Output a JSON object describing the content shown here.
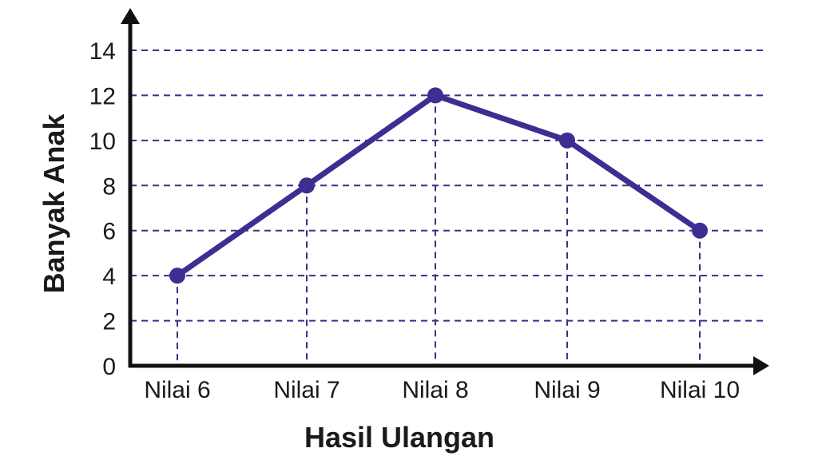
{
  "chart_data": {
    "type": "line",
    "title": "",
    "xlabel": "Hasil Ulangan",
    "ylabel": "Banyak Anak",
    "categories": [
      "Nilai 6",
      "Nilai 7",
      "Nilai 8",
      "Nilai 9",
      "Nilai 10"
    ],
    "values": [
      4,
      8,
      12,
      10,
      6
    ],
    "ylim": [
      0,
      14
    ],
    "yticks": [
      0,
      2,
      4,
      6,
      8,
      10,
      12,
      14
    ],
    "grid": true,
    "colors": {
      "line": "#3f2d91",
      "grid": "#3a2f8a",
      "axis": "#111111"
    }
  }
}
